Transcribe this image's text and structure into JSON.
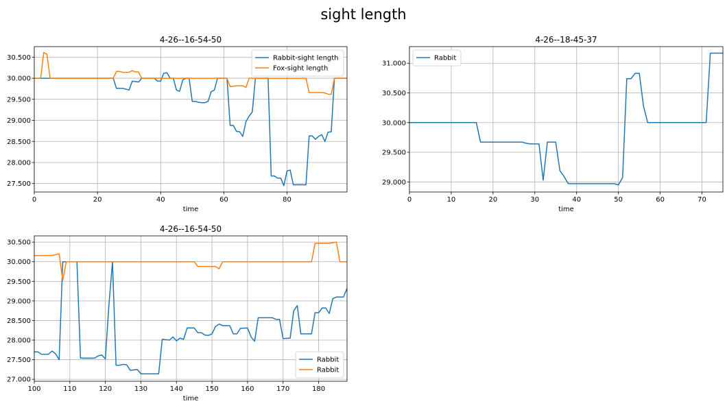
{
  "figure": {
    "title": "sight length"
  },
  "chart_data": [
    {
      "type": "line",
      "title": "4-26--16-54-50",
      "xlabel": "time",
      "ylabel": "",
      "xlim": [
        0,
        99
      ],
      "ylim": [
        27.3,
        30.75
      ],
      "xticks": [
        0,
        20,
        40,
        60,
        80
      ],
      "yticks": [
        27.5,
        28.0,
        28.5,
        29.0,
        29.5,
        30.0,
        30.5
      ],
      "grid": true,
      "legend_position": "upper right",
      "series": [
        {
          "name": "Rabbit-sight length",
          "color": "#1f77b4",
          "points": [
            [
              0,
              30.0
            ],
            [
              25,
              30.0
            ],
            [
              26,
              29.76
            ],
            [
              28,
              29.76
            ],
            [
              30,
              29.72
            ],
            [
              31,
              29.93
            ],
            [
              33,
              29.91
            ],
            [
              34,
              30.0
            ],
            [
              38,
              30.0
            ],
            [
              39,
              29.93
            ],
            [
              40,
              29.93
            ],
            [
              41,
              30.12
            ],
            [
              42,
              30.13
            ],
            [
              43,
              30.0
            ],
            [
              44,
              30.0
            ],
            [
              45,
              29.72
            ],
            [
              46,
              29.69
            ],
            [
              47,
              29.96
            ],
            [
              48,
              30.0
            ],
            [
              49,
              30.0
            ],
            [
              50,
              29.45
            ],
            [
              51,
              29.45
            ],
            [
              52,
              29.43
            ],
            [
              53,
              29.42
            ],
            [
              54,
              29.42
            ],
            [
              55,
              29.45
            ],
            [
              56,
              29.68
            ],
            [
              57,
              29.72
            ],
            [
              58,
              30.0
            ],
            [
              61,
              30.0
            ],
            [
              62,
              28.88
            ],
            [
              63,
              28.88
            ],
            [
              64,
              28.74
            ],
            [
              65,
              28.73
            ],
            [
              66,
              28.62
            ],
            [
              67,
              28.97
            ],
            [
              68,
              29.1
            ],
            [
              69,
              29.2
            ],
            [
              70,
              30.0
            ],
            [
              74,
              30.0
            ],
            [
              75,
              27.68
            ],
            [
              76,
              27.68
            ],
            [
              77,
              27.63
            ],
            [
              78,
              27.63
            ],
            [
              79,
              27.45
            ],
            [
              80,
              27.8
            ],
            [
              81,
              27.82
            ],
            [
              82,
              27.47
            ],
            [
              86,
              27.47
            ],
            [
              87,
              28.63
            ],
            [
              88,
              28.63
            ],
            [
              89,
              28.55
            ],
            [
              90,
              28.62
            ],
            [
              91,
              28.66
            ],
            [
              92,
              28.5
            ],
            [
              93,
              28.72
            ],
            [
              94,
              28.73
            ],
            [
              95,
              30.0
            ],
            [
              99,
              30.0
            ]
          ]
        },
        {
          "name": "Fox-sight length",
          "color": "#ff7f0e",
          "points": [
            [
              0,
              30.0
            ],
            [
              2,
              30.0
            ],
            [
              3,
              30.61
            ],
            [
              4,
              30.57
            ],
            [
              5,
              30.0
            ],
            [
              25,
              30.0
            ],
            [
              26,
              30.16
            ],
            [
              27,
              30.16
            ],
            [
              28,
              30.14
            ],
            [
              30,
              30.14
            ],
            [
              31,
              30.18
            ],
            [
              32,
              30.15
            ],
            [
              33,
              30.15
            ],
            [
              34,
              30.0
            ],
            [
              61,
              30.0
            ],
            [
              62,
              29.8
            ],
            [
              63,
              29.81
            ],
            [
              64,
              29.82
            ],
            [
              66,
              29.82
            ],
            [
              67,
              29.78
            ],
            [
              68,
              30.0
            ],
            [
              86,
              30.0
            ],
            [
              87,
              29.66
            ],
            [
              91,
              29.66
            ],
            [
              92,
              29.65
            ],
            [
              93,
              29.62
            ],
            [
              94,
              29.62
            ],
            [
              95,
              30.0
            ],
            [
              99,
              30.0
            ]
          ]
        }
      ]
    },
    {
      "type": "line",
      "title": "4-26--18-45-37",
      "xlabel": "time",
      "ylabel": "",
      "xlim": [
        0,
        75
      ],
      "ylim": [
        28.83,
        31.28
      ],
      "xticks": [
        0,
        10,
        20,
        30,
        40,
        50,
        60,
        70
      ],
      "yticks": [
        29.0,
        29.5,
        30.0,
        30.5,
        31.0
      ],
      "grid": true,
      "legend_position": "upper left",
      "series": [
        {
          "name": "Rabbit",
          "color": "#1f77b4",
          "points": [
            [
              0,
              30.0
            ],
            [
              16,
              30.0
            ],
            [
              17,
              29.67
            ],
            [
              27,
              29.67
            ],
            [
              28,
              29.65
            ],
            [
              29,
              29.64
            ],
            [
              31,
              29.64
            ],
            [
              32,
              29.03
            ],
            [
              33,
              29.67
            ],
            [
              35,
              29.67
            ],
            [
              36,
              29.19
            ],
            [
              37,
              29.09
            ],
            [
              38,
              28.97
            ],
            [
              49,
              28.97
            ],
            [
              50,
              28.95
            ],
            [
              51,
              29.07
            ],
            [
              52,
              30.74
            ],
            [
              53,
              30.74
            ],
            [
              54,
              30.83
            ],
            [
              55,
              30.83
            ],
            [
              56,
              30.28
            ],
            [
              57,
              30.0
            ],
            [
              71,
              30.0
            ],
            [
              72,
              31.17
            ],
            [
              75,
              31.17
            ]
          ]
        }
      ]
    },
    {
      "type": "line",
      "title": "4-26--16-54-50",
      "xlabel": "time",
      "ylabel": "",
      "xlim": [
        100,
        188
      ],
      "ylim": [
        26.95,
        30.66
      ],
      "xticks": [
        100,
        110,
        120,
        130,
        140,
        150,
        160,
        170,
        180
      ],
      "yticks": [
        27.0,
        27.5,
        28.0,
        28.5,
        29.0,
        29.5,
        30.0,
        30.5
      ],
      "grid": true,
      "legend_position": "lower right",
      "series": [
        {
          "name": "Rabbit",
          "color": "#1f77b4",
          "points": [
            [
              100,
              27.7
            ],
            [
              101,
              27.7
            ],
            [
              102,
              27.64
            ],
            [
              104,
              27.64
            ],
            [
              105,
              27.72
            ],
            [
              106,
              27.65
            ],
            [
              107,
              27.5
            ],
            [
              108,
              30.0
            ],
            [
              112,
              30.0
            ],
            [
              113,
              27.54
            ],
            [
              117,
              27.54
            ],
            [
              118,
              27.6
            ],
            [
              119,
              27.62
            ],
            [
              120,
              27.52
            ],
            [
              121,
              28.9
            ],
            [
              122,
              30.0
            ],
            [
              123,
              27.36
            ],
            [
              124,
              27.36
            ],
            [
              125,
              27.38
            ],
            [
              126,
              27.37
            ],
            [
              127,
              27.23
            ],
            [
              129,
              27.25
            ],
            [
              130,
              27.14
            ],
            [
              135,
              27.14
            ],
            [
              136,
              28.02
            ],
            [
              137,
              28.01
            ],
            [
              138,
              28.0
            ],
            [
              139,
              28.08
            ],
            [
              140,
              27.98
            ],
            [
              141,
              28.05
            ],
            [
              142,
              28.02
            ],
            [
              143,
              28.31
            ],
            [
              145,
              28.31
            ],
            [
              146,
              28.19
            ],
            [
              147,
              28.19
            ],
            [
              148,
              28.13
            ],
            [
              149,
              28.12
            ],
            [
              150,
              28.16
            ],
            [
              151,
              28.35
            ],
            [
              152,
              28.41
            ],
            [
              153,
              28.37
            ],
            [
              155,
              28.37
            ],
            [
              156,
              28.16
            ],
            [
              157,
              28.16
            ],
            [
              158,
              28.3
            ],
            [
              160,
              28.31
            ],
            [
              161,
              28.08
            ],
            [
              162,
              27.97
            ],
            [
              163,
              28.57
            ],
            [
              167,
              28.57
            ],
            [
              168,
              28.53
            ],
            [
              169,
              28.53
            ],
            [
              170,
              28.04
            ],
            [
              172,
              28.05
            ],
            [
              173,
              28.75
            ],
            [
              174,
              28.88
            ],
            [
              175,
              28.16
            ],
            [
              178,
              28.16
            ],
            [
              179,
              28.7
            ],
            [
              180,
              28.7
            ],
            [
              181,
              28.82
            ],
            [
              182,
              28.82
            ],
            [
              183,
              28.68
            ],
            [
              184,
              29.06
            ],
            [
              185,
              29.1
            ],
            [
              187,
              29.1
            ],
            [
              188,
              29.32
            ]
          ]
        },
        {
          "name": "Rabbit",
          "color": "#ff7f0e",
          "points": [
            [
              100,
              30.16
            ],
            [
              105,
              30.16
            ],
            [
              107,
              30.2
            ],
            [
              108,
              29.52
            ],
            [
              109,
              30.0
            ],
            [
              145,
              30.0
            ],
            [
              146,
              29.88
            ],
            [
              151,
              29.88
            ],
            [
              152,
              29.82
            ],
            [
              153,
              30.0
            ],
            [
              178,
              30.0
            ],
            [
              179,
              30.47
            ],
            [
              183,
              30.47
            ],
            [
              185,
              30.5
            ],
            [
              186,
              30.0
            ],
            [
              188,
              30.0
            ]
          ]
        }
      ]
    }
  ]
}
